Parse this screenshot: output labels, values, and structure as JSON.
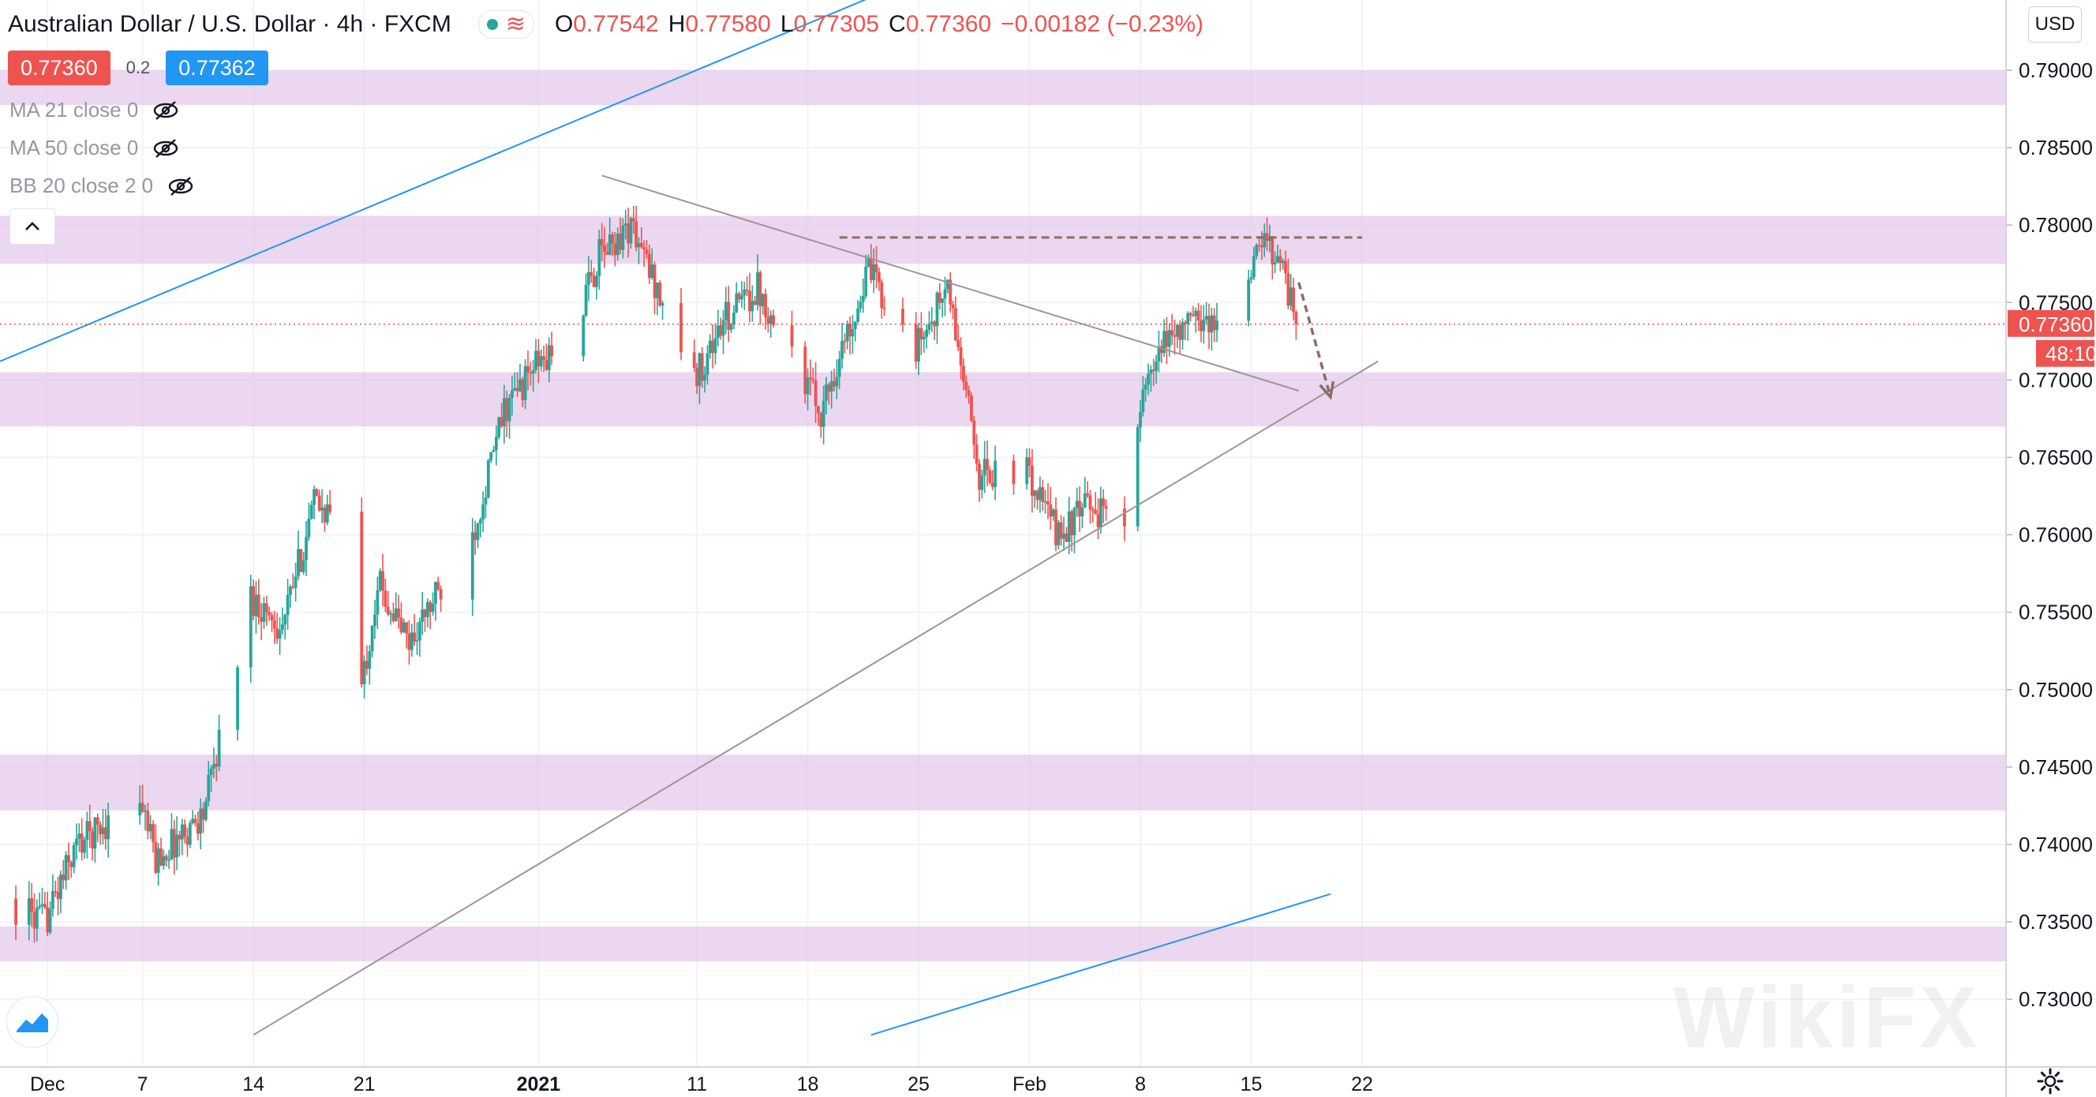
{
  "header": {
    "symbol_title": "Australian Dollar / U.S. Dollar · 4h · FXCM",
    "ohlc": {
      "o_label": "O",
      "o": "0.77542",
      "h_label": "H",
      "h": "0.77580",
      "l_label": "L",
      "l": "0.77305",
      "c_label": "C",
      "c": "0.77360",
      "change": "−0.00182 (−0.23%)"
    }
  },
  "trade": {
    "sell": "0.77360",
    "spread": "0.2",
    "buy": "0.77362"
  },
  "indicators": [
    {
      "label": "MA 21 close 0"
    },
    {
      "label": "MA 50 close 0"
    },
    {
      "label": "BB 20 close 2 0"
    }
  ],
  "currency_button": "USD",
  "icons": {
    "market_open": "green-dot-icon",
    "wave": "wave-icon",
    "eye_hidden": "eye-off-icon",
    "collapse": "chevron-up-icon",
    "logo": "tradingview-logo-icon",
    "settings": "gear-icon"
  },
  "watermark": "WikiFX",
  "colors": {
    "up": "#26a69a",
    "down": "#ef5350",
    "zone": "#e1bee7",
    "blue_line": "#2196f3",
    "gray_line": "#9e9696",
    "dashed": "#8d6e63",
    "price_tag": "#ef5350"
  },
  "chart_data": {
    "type": "candlestick",
    "symbol": "AUD/USD",
    "timeframe": "4h",
    "source": "FXCM",
    "ylim": [
      0.7277,
      0.7932
    ],
    "y_ticks": [
      "0.79000",
      "0.78500",
      "0.78000",
      "0.77500",
      "0.77000",
      "0.76500",
      "0.76000",
      "0.75500",
      "0.75000",
      "0.74500",
      "0.74000",
      "0.73500",
      "0.73000"
    ],
    "x_ticks": [
      {
        "label": "Dec",
        "date": "2020-12-01"
      },
      {
        "label": "7",
        "date": "2020-12-07"
      },
      {
        "label": "14",
        "date": "2020-12-14"
      },
      {
        "label": "21",
        "date": "2020-12-21"
      },
      {
        "label": "2021",
        "date": "2021-01-01",
        "bold": true
      },
      {
        "label": "11",
        "date": "2021-01-11"
      },
      {
        "label": "18",
        "date": "2021-01-18"
      },
      {
        "label": "25",
        "date": "2021-01-25"
      },
      {
        "label": "Feb",
        "date": "2021-02-01"
      },
      {
        "label": "8",
        "date": "2021-02-08"
      },
      {
        "label": "15",
        "date": "2021-02-15"
      },
      {
        "label": "22",
        "date": "2021-02-22"
      }
    ],
    "price_path_key_points": [
      {
        "date": "2020-11-28",
        "price": 0.7365
      },
      {
        "date": "2020-12-01",
        "price": 0.735
      },
      {
        "date": "2020-12-03",
        "price": 0.74
      },
      {
        "date": "2020-12-07",
        "price": 0.743
      },
      {
        "date": "2020-12-08",
        "price": 0.739
      },
      {
        "date": "2020-12-11",
        "price": 0.742
      },
      {
        "date": "2020-12-14",
        "price": 0.756
      },
      {
        "date": "2020-12-16",
        "price": 0.754
      },
      {
        "date": "2020-12-18",
        "price": 0.762
      },
      {
        "date": "2020-12-20",
        "price": 0.761
      },
      {
        "date": "2020-12-21",
        "price": 0.75
      },
      {
        "date": "2020-12-22",
        "price": 0.757
      },
      {
        "date": "2020-12-24",
        "price": 0.753
      },
      {
        "date": "2020-12-28",
        "price": 0.76
      },
      {
        "date": "2020-12-30",
        "price": 0.768
      },
      {
        "date": "2021-01-01",
        "price": 0.771
      },
      {
        "date": "2021-01-03",
        "price": 0.772
      },
      {
        "date": "2021-01-05",
        "price": 0.778
      },
      {
        "date": "2021-01-07",
        "price": 0.78
      },
      {
        "date": "2021-01-09",
        "price": 0.775
      },
      {
        "date": "2021-01-11",
        "price": 0.77
      },
      {
        "date": "2021-01-13",
        "price": 0.774
      },
      {
        "date": "2021-01-15",
        "price": 0.776
      },
      {
        "date": "2021-01-18",
        "price": 0.77
      },
      {
        "date": "2021-01-19",
        "price": 0.768
      },
      {
        "date": "2021-01-21",
        "price": 0.774
      },
      {
        "date": "2021-01-22",
        "price": 0.777
      },
      {
        "date": "2021-01-25",
        "price": 0.772
      },
      {
        "date": "2021-01-27",
        "price": 0.776
      },
      {
        "date": "2021-01-29",
        "price": 0.764
      },
      {
        "date": "2021-02-01",
        "price": 0.764
      },
      {
        "date": "2021-02-03",
        "price": 0.76
      },
      {
        "date": "2021-02-05",
        "price": 0.762
      },
      {
        "date": "2021-02-07",
        "price": 0.76
      },
      {
        "date": "2021-02-08",
        "price": 0.768
      },
      {
        "date": "2021-02-10",
        "price": 0.773
      },
      {
        "date": "2021-02-12",
        "price": 0.774
      },
      {
        "date": "2021-02-14",
        "price": 0.773
      },
      {
        "date": "2021-02-15",
        "price": 0.777
      },
      {
        "date": "2021-02-16",
        "price": 0.779
      },
      {
        "date": "2021-02-17",
        "price": 0.778
      },
      {
        "date": "2021-02-18",
        "price": 0.7736
      }
    ],
    "support_resistance_zones": [
      {
        "low": 0.78775,
        "high": 0.79
      },
      {
        "low": 0.7775,
        "high": 0.7806
      },
      {
        "low": 0.767,
        "high": 0.7705
      },
      {
        "low": 0.7422,
        "high": 0.7458
      },
      {
        "low": 0.73245,
        "high": 0.7347
      }
    ],
    "trendlines": [
      {
        "color": "blue",
        "from": {
          "date": "2020-11-28",
          "price": 0.7712
        },
        "to": {
          "date": "2021-01-25",
          "price": 0.796
        }
      },
      {
        "color": "blue",
        "from": {
          "date": "2021-01-22",
          "price": 0.7277
        },
        "to": {
          "date": "2021-02-20",
          "price": 0.7368
        }
      },
      {
        "color": "gray",
        "from": {
          "date": "2020-12-14",
          "price": 0.7277
        },
        "to": {
          "date": "2021-02-23",
          "price": 0.7712
        }
      },
      {
        "color": "gray",
        "from": {
          "date": "2021-01-05",
          "price": 0.7832
        },
        "to": {
          "date": "2021-02-18",
          "price": 0.7693
        }
      }
    ],
    "horizontal_levels": [
      {
        "price": 0.7792,
        "style": "dashed",
        "color": "brown",
        "from": "2021-01-20",
        "to": "2021-02-22"
      },
      {
        "price": 0.7736,
        "style": "dotted",
        "color": "red"
      }
    ],
    "projection_arrow": {
      "from": {
        "date": "2021-02-18",
        "price": 0.7763
      },
      "to": {
        "date": "2021-02-20",
        "price": 0.7689
      }
    },
    "last_price": "0.77360",
    "countdown": "48:10",
    "grid": true
  }
}
